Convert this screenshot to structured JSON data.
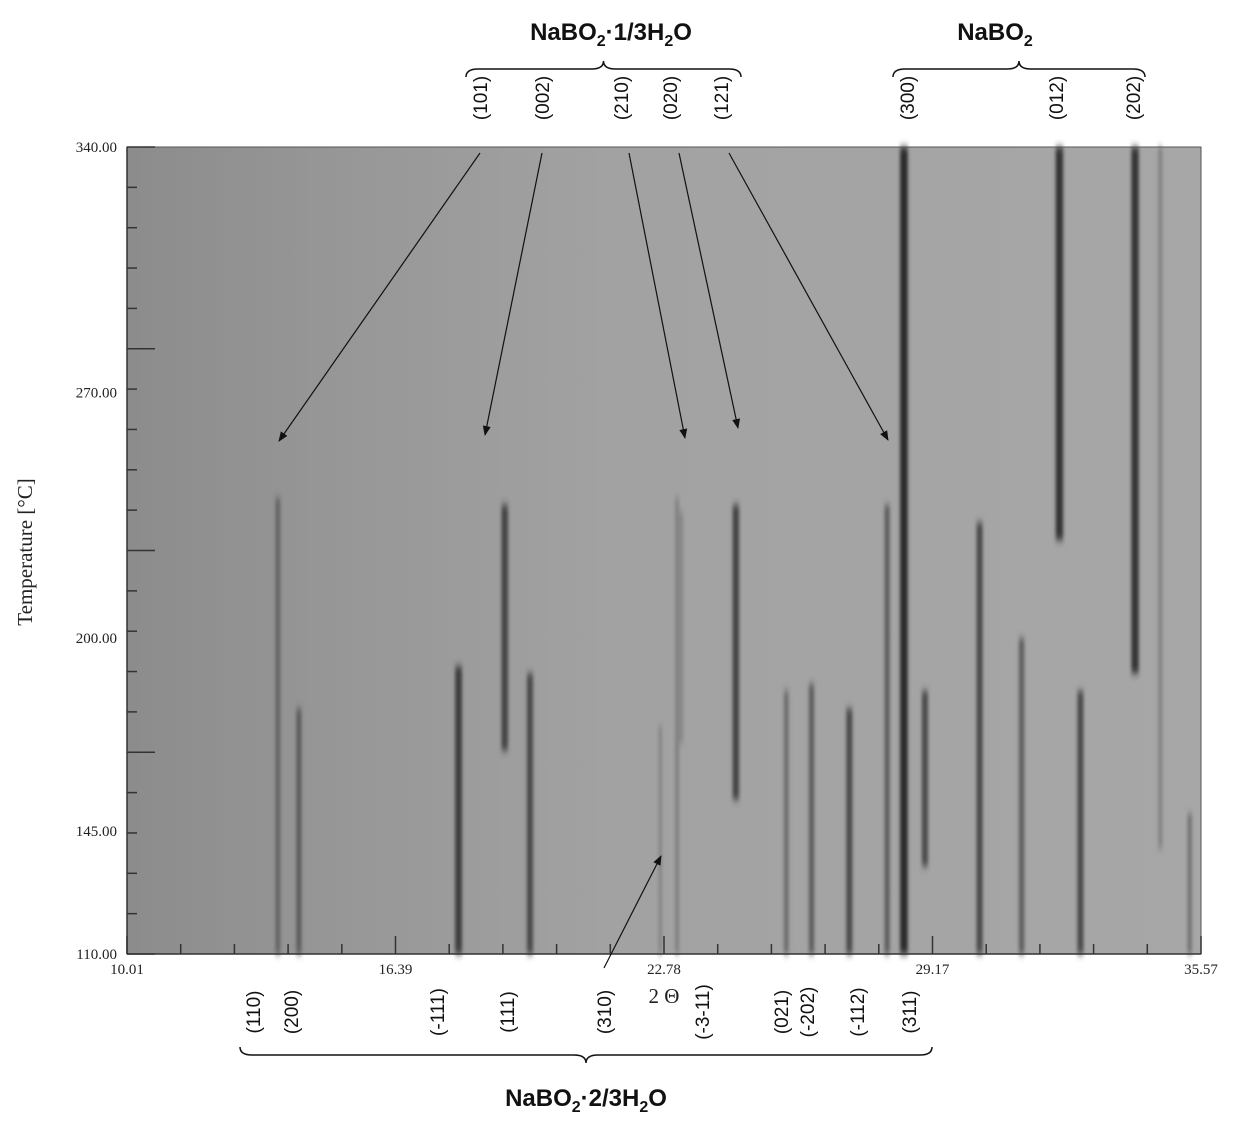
{
  "chart_data": {
    "type": "heatmap",
    "xlabel": "2 Θ",
    "ylabel": "Temperature [°C]",
    "xlim": [
      10.01,
      35.57
    ],
    "ylim": [
      110.0,
      340.0
    ],
    "x_ticks": [
      "10.01",
      "16.39",
      "22.78",
      "29.17",
      "35.57"
    ],
    "y_ticks": [
      "340.00",
      "270.00",
      "200.00",
      "145.00",
      "110.00"
    ],
    "y_tick_values": [
      340.0,
      270.0,
      200.0,
      145.0,
      110.0
    ],
    "colormap": "grayscale, darker = higher intensity",
    "phases": [
      {
        "name": "NaBO2·1/3H2O",
        "name_parts": {
          "main": "NaBO",
          "sub1": "2",
          "mid": "·1/3H",
          "sub2": "2",
          "tail": "O"
        },
        "position": "top",
        "reflections": [
          {
            "hkl": "(101)",
            "two_theta": 14.8,
            "t_onset": 240
          },
          {
            "hkl": "(002)",
            "two_theta": 19.9,
            "t_onset": 240
          },
          {
            "hkl": "(210)",
            "two_theta": 23.2,
            "t_onset": 238
          },
          {
            "hkl": "(020)",
            "two_theta": 24.5,
            "t_onset": 240
          },
          {
            "hkl": "(121)",
            "two_theta": 28.2,
            "t_onset": 238
          }
        ]
      },
      {
        "name": "NaBO2",
        "name_parts": {
          "main": "NaBO",
          "sub1": "2"
        },
        "position": "top",
        "reflections": [
          {
            "hkl": "(300)",
            "two_theta": 28.5
          },
          {
            "hkl": "(012)",
            "two_theta": 32.2
          },
          {
            "hkl": "(202)",
            "two_theta": 34.0
          }
        ]
      },
      {
        "name": "NaBO2·2/3H2O",
        "name_parts": {
          "main": "NaBO",
          "sub1": "2",
          "mid": "·2/3H",
          "sub2": "2",
          "tail": "O"
        },
        "position": "bottom",
        "reflections": [
          {
            "hkl": "(110)"
          },
          {
            "hkl": "(200)"
          },
          {
            "hkl": "(-111)"
          },
          {
            "hkl": "(111)"
          },
          {
            "hkl": "(310)",
            "two_theta": 22.7
          },
          {
            "hkl": "(-3-11)"
          },
          {
            "hkl": "(021)"
          },
          {
            "hkl": "(-202)"
          },
          {
            "hkl": "(-112)"
          },
          {
            "hkl": "(311)"
          }
        ]
      }
    ],
    "bands": [
      {
        "two_theta": 13.6,
        "t_min": 110,
        "t_max": 240,
        "intensity": 0.5
      },
      {
        "two_theta": 14.1,
        "t_min": 110,
        "t_max": 180,
        "intensity": 0.55
      },
      {
        "two_theta": 17.9,
        "t_min": 110,
        "t_max": 192,
        "intensity": 0.8
      },
      {
        "two_theta": 19.0,
        "t_min": 168,
        "t_max": 238,
        "intensity": 0.75
      },
      {
        "two_theta": 19.6,
        "t_min": 110,
        "t_max": 190,
        "intensity": 0.7
      },
      {
        "two_theta": 22.7,
        "t_min": 110,
        "t_max": 175,
        "intensity": 0.25
      },
      {
        "two_theta": 23.2,
        "t_min": 170,
        "t_max": 236,
        "intensity": 0.25
      },
      {
        "two_theta": 23.1,
        "t_min": 110,
        "t_max": 240,
        "intensity": 0.3
      },
      {
        "two_theta": 24.5,
        "t_min": 154,
        "t_max": 238,
        "intensity": 0.75
      },
      {
        "two_theta": 25.7,
        "t_min": 110,
        "t_max": 185,
        "intensity": 0.45
      },
      {
        "two_theta": 26.3,
        "t_min": 110,
        "t_max": 187,
        "intensity": 0.55
      },
      {
        "two_theta": 27.2,
        "t_min": 110,
        "t_max": 180,
        "intensity": 0.7
      },
      {
        "two_theta": 28.1,
        "t_min": 110,
        "t_max": 238,
        "intensity": 0.55
      },
      {
        "two_theta": 28.5,
        "t_min": 110,
        "t_max": 340,
        "intensity": 0.95
      },
      {
        "two_theta": 29.0,
        "t_min": 135,
        "t_max": 185,
        "intensity": 0.7
      },
      {
        "two_theta": 30.3,
        "t_min": 110,
        "t_max": 233,
        "intensity": 0.7
      },
      {
        "two_theta": 31.3,
        "t_min": 110,
        "t_max": 200,
        "intensity": 0.55
      },
      {
        "two_theta": 32.2,
        "t_min": 228,
        "t_max": 340,
        "intensity": 0.9
      },
      {
        "two_theta": 32.7,
        "t_min": 110,
        "t_max": 185,
        "intensity": 0.7
      },
      {
        "two_theta": 34.0,
        "t_min": 190,
        "t_max": 340,
        "intensity": 0.9
      },
      {
        "two_theta": 34.6,
        "t_min": 140,
        "t_max": 340,
        "intensity": 0.3
      },
      {
        "two_theta": 35.3,
        "t_min": 110,
        "t_max": 150,
        "intensity": 0.4
      }
    ]
  }
}
